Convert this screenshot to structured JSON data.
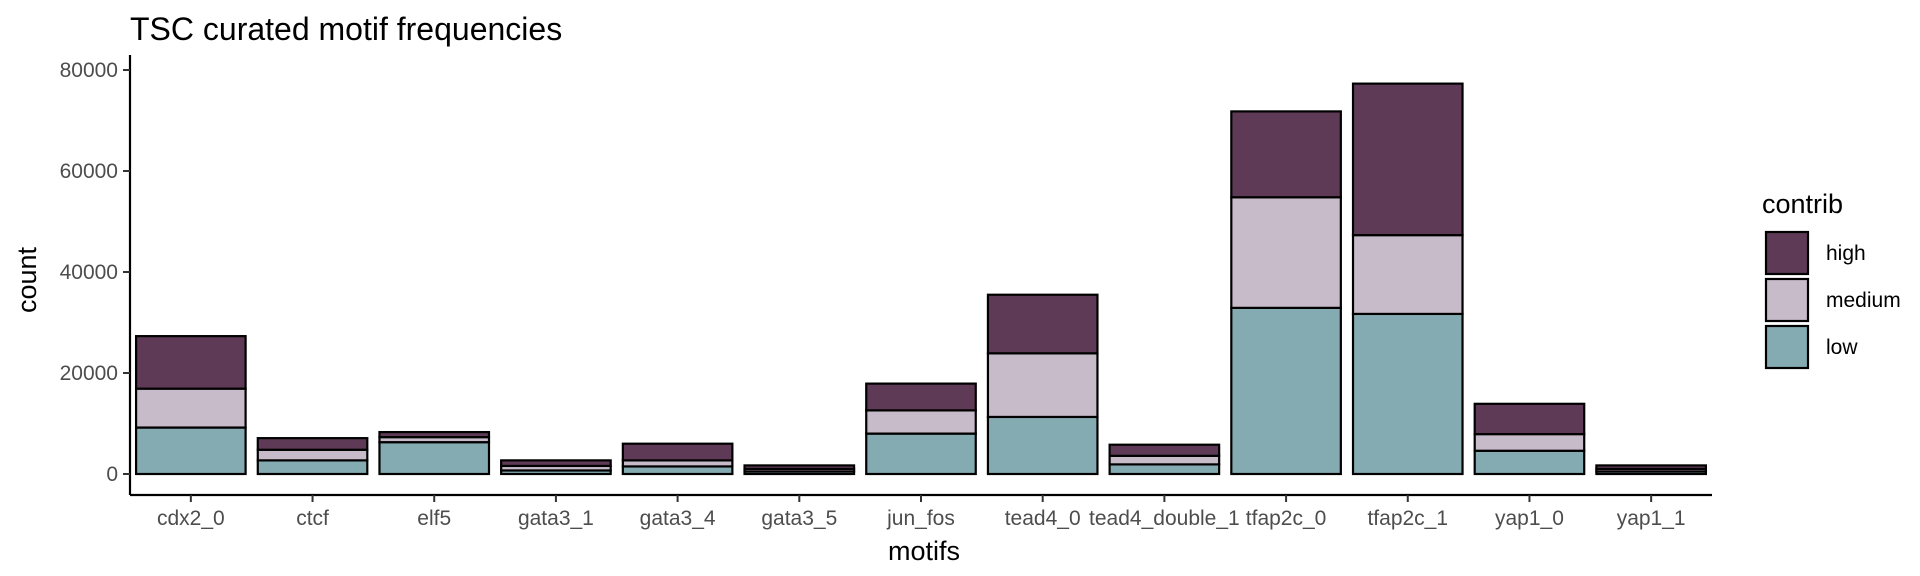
{
  "chart_data": {
    "type": "bar",
    "stacked": true,
    "title": "TSC curated motif frequencies",
    "xlabel": "motifs",
    "ylabel": "count",
    "ylim": [
      0,
      80000
    ],
    "yticks": [
      0,
      20000,
      40000,
      60000,
      80000
    ],
    "ytick_labels": [
      "0",
      "20000",
      "40000",
      "60000",
      "80000"
    ],
    "grid": false,
    "legend": {
      "title": "contrib",
      "placement": "right",
      "entries": [
        "high",
        "medium",
        "low"
      ]
    },
    "categories": [
      "cdx2_0",
      "ctcf",
      "elf5",
      "gata3_1",
      "gata3_4",
      "gata3_5",
      "jun_fos",
      "tead4_0",
      "tead4_double_1",
      "tfap2c_0",
      "tfap2c_1",
      "yap1_0",
      "yap1_1"
    ],
    "series": [
      {
        "name": "low",
        "color": "#84abb2",
        "values": [
          9200,
          2700,
          6300,
          700,
          1500,
          500,
          8000,
          11300,
          1900,
          32900,
          31700,
          4600,
          500
        ]
      },
      {
        "name": "medium",
        "color": "#c7bac9",
        "values": [
          7700,
          2100,
          1000,
          900,
          1200,
          500,
          4600,
          12600,
          1700,
          21900,
          15600,
          3300,
          500
        ]
      },
      {
        "name": "high",
        "color": "#5e3a56",
        "values": [
          10400,
          2300,
          1000,
          1100,
          3300,
          700,
          5300,
          11600,
          2200,
          17000,
          30000,
          6000,
          700
        ]
      }
    ]
  }
}
